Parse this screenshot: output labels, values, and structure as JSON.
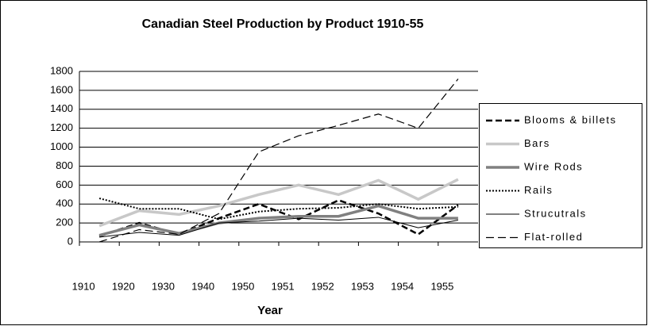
{
  "chart_data": {
    "type": "line",
    "title": "Canadian Steel Production by Product 1910-55",
    "x_label": "Year",
    "categories": [
      "1910",
      "1920",
      "1930",
      "1940",
      "1950",
      "1951",
      "1952",
      "1953",
      "1954",
      "1955"
    ],
    "series": [
      {
        "name": "Blooms & billets",
        "color": "#000000",
        "values": [
          60,
          200,
          80,
          250,
          400,
          240,
          440,
          300,
          80,
          390
        ]
      },
      {
        "name": "Bars",
        "color": "#c8c8c8",
        "values": [
          170,
          330,
          290,
          380,
          500,
          600,
          500,
          650,
          450,
          660
        ]
      },
      {
        "name": "Wire Rods",
        "color": "#808080",
        "values": [
          70,
          180,
          90,
          200,
          250,
          270,
          270,
          380,
          250,
          250
        ]
      },
      {
        "name": "Rails",
        "color": "#000000",
        "values": [
          460,
          350,
          350,
          240,
          320,
          350,
          360,
          400,
          350,
          370
        ]
      },
      {
        "name": "Strucutrals",
        "color": "#000000",
        "values": [
          50,
          100,
          70,
          200,
          220,
          250,
          230,
          260,
          150,
          230
        ]
      },
      {
        "name": "Flat-rolled",
        "color": "#000000",
        "values": [
          0,
          130,
          80,
          300,
          950,
          1120,
          1230,
          1350,
          1200,
          1720
        ]
      }
    ],
    "ylim": [
      0,
      1800
    ],
    "yticks": [
      0,
      200,
      400,
      600,
      800,
      1000,
      1200,
      1400,
      1600,
      1800
    ],
    "grid": true
  }
}
